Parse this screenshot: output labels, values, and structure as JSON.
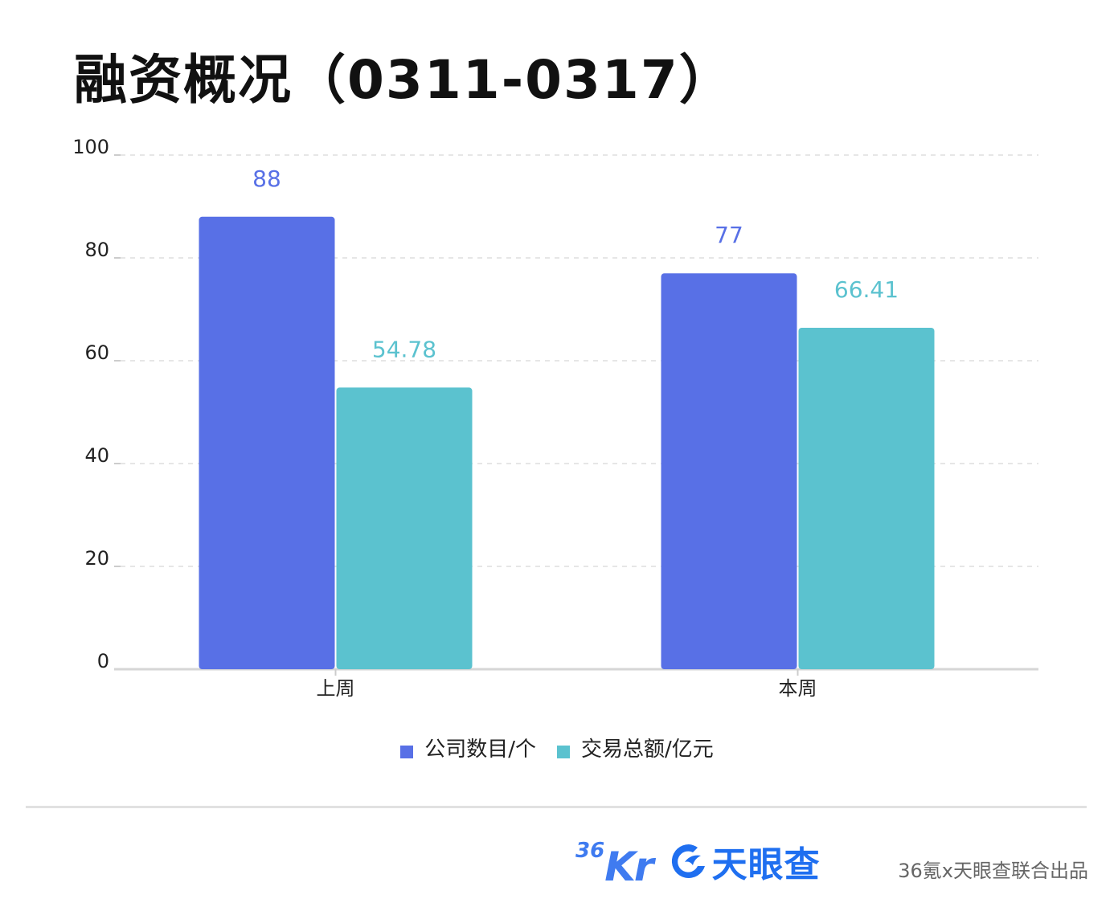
{
  "title": "融资概况（0311-0317）",
  "chart_data": {
    "type": "bar",
    "categories": [
      "上周",
      "本周"
    ],
    "series": [
      {
        "name": "公司数目/个",
        "values": [
          88,
          77
        ],
        "color": "#5870e6"
      },
      {
        "name": "交易总额/亿元",
        "values": [
          54.78,
          66.41
        ],
        "color": "#5bc2cf"
      }
    ],
    "value_labels": [
      [
        "88",
        "77"
      ],
      [
        "54.78",
        "66.41"
      ]
    ],
    "yticks": [
      "0",
      "20",
      "40",
      "60",
      "80",
      "100"
    ],
    "ylim": [
      0,
      100
    ],
    "grid": true,
    "legend_position": "bottom",
    "xlabel": "",
    "ylabel": ""
  },
  "footer": {
    "logo_36kr_sup": "36",
    "logo_36kr_main": "Kr",
    "logo_tyc": "天眼查",
    "credit": "36氪x天眼查联合出品"
  }
}
